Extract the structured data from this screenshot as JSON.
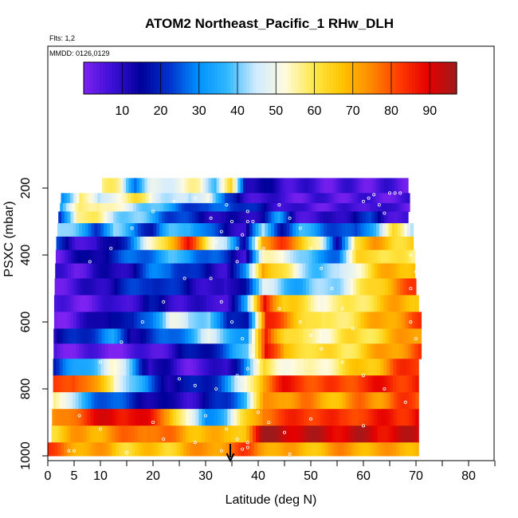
{
  "chart_data": {
    "type": "heatmap",
    "title": "ATOM2 Northeast_Pacific_1 RHw_DLH",
    "flights_label": "Flts: 1,2",
    "dates_label": "MMDD: 0126,0129",
    "xlabel": "Latitude (deg N)",
    "ylabel": "PSXC (mbar)",
    "xlim": [
      0,
      85
    ],
    "ylim": [
      1000,
      0
    ],
    "x_ticks_labeled": [
      0,
      5,
      10,
      20,
      30,
      40,
      50,
      60,
      70,
      80
    ],
    "x_ticks_minor": [
      15,
      25,
      35,
      45,
      55,
      65,
      75,
      85
    ],
    "y_ticks": [
      200,
      400,
      600,
      800,
      1000
    ],
    "marker_latitude": 34.7,
    "colorbar": {
      "min": 0,
      "max": 97,
      "tick_values": [
        10,
        20,
        30,
        40,
        50,
        60,
        70,
        80,
        90
      ],
      "colors": [
        "#7e22f2",
        "#3b0fd6",
        "#000099",
        "#0033cc",
        "#0090ff",
        "#30b8ff",
        "#cfeaff",
        "#fffbe0",
        "#ffe84a",
        "#ffc400",
        "#ff8a00",
        "#ff3b00",
        "#e60000",
        "#9e1a1a"
      ]
    },
    "bands": [
      {
        "p_top": 170,
        "p_bot": 215,
        "lat_start": 10.3,
        "lat_end": 68.5,
        "values": [
          55,
          55,
          30,
          45,
          50,
          50,
          55,
          40,
          60,
          15,
          12,
          10,
          8,
          5,
          5,
          5,
          5,
          5,
          5,
          5
        ]
      },
      {
        "p_top": 215,
        "p_bot": 245,
        "lat_start": 2.5,
        "lat_end": 68.8,
        "values": [
          30,
          60,
          40,
          55,
          60,
          50,
          45,
          40,
          55,
          20,
          10,
          8,
          5,
          5,
          5,
          5,
          5,
          5,
          5,
          5
        ]
      },
      {
        "p_top": 245,
        "p_bot": 270,
        "lat_start": 2.3,
        "lat_end": 68.8,
        "values": [
          35,
          55,
          60,
          50,
          45,
          40,
          30,
          25,
          20,
          30,
          20,
          15,
          10,
          5,
          5,
          5,
          5,
          10,
          5,
          5
        ]
      },
      {
        "p_top": 270,
        "p_bot": 305,
        "lat_start": 2.0,
        "lat_end": 68.5,
        "values": [
          20,
          60,
          55,
          45,
          40,
          35,
          25,
          20,
          15,
          10,
          10,
          15,
          30,
          10,
          5,
          10,
          15,
          20,
          10,
          5
        ]
      },
      {
        "p_top": 305,
        "p_bot": 345,
        "lat_start": 1.8,
        "lat_end": 69.5,
        "values": [
          45,
          35,
          25,
          40,
          30,
          20,
          35,
          40,
          25,
          15,
          10,
          40,
          20,
          35,
          30,
          25,
          20,
          40,
          60,
          45
        ]
      },
      {
        "p_top": 345,
        "p_bot": 385,
        "lat_start": 1.6,
        "lat_end": 69.5,
        "values": [
          20,
          10,
          5,
          15,
          30,
          50,
          70,
          85,
          60,
          45,
          10,
          75,
          80,
          70,
          55,
          10,
          65,
          70,
          65,
          65
        ]
      },
      {
        "p_top": 385,
        "p_bot": 425,
        "lat_start": 1.5,
        "lat_end": 69.8,
        "values": [
          5,
          10,
          15,
          20,
          25,
          30,
          35,
          35,
          25,
          20,
          10,
          50,
          55,
          40,
          30,
          30,
          60,
          65,
          60,
          55
        ]
      },
      {
        "p_top": 425,
        "p_bot": 470,
        "lat_start": 1.4,
        "lat_end": 69.8,
        "values": [
          5,
          5,
          10,
          10,
          15,
          25,
          30,
          20,
          15,
          10,
          25,
          75,
          60,
          45,
          40,
          40,
          55,
          65,
          70,
          70
        ]
      },
      {
        "p_top": 470,
        "p_bot": 520,
        "lat_start": 1.3,
        "lat_end": 70.0,
        "values": [
          5,
          5,
          10,
          15,
          20,
          25,
          20,
          15,
          10,
          5,
          20,
          45,
          40,
          35,
          40,
          45,
          55,
          65,
          75,
          80
        ]
      },
      {
        "p_top": 520,
        "p_bot": 570,
        "lat_start": 1.2,
        "lat_end": 70.5,
        "values": [
          3,
          3,
          5,
          5,
          10,
          15,
          10,
          10,
          5,
          10,
          30,
          90,
          65,
          60,
          55,
          55,
          60,
          65,
          70,
          70
        ]
      },
      {
        "p_top": 570,
        "p_bot": 620,
        "lat_start": 1.2,
        "lat_end": 71.0,
        "values": [
          3,
          5,
          10,
          20,
          15,
          30,
          50,
          40,
          45,
          15,
          20,
          85,
          75,
          65,
          55,
          60,
          65,
          70,
          75,
          80
        ]
      },
      {
        "p_top": 620,
        "p_bot": 665,
        "lat_start": 1.1,
        "lat_end": 71.0,
        "values": [
          10,
          20,
          25,
          30,
          15,
          20,
          25,
          35,
          45,
          40,
          30,
          85,
          65,
          55,
          55,
          60,
          60,
          65,
          70,
          75
        ]
      },
      {
        "p_top": 665,
        "p_bot": 710,
        "lat_start": 1.1,
        "lat_end": 71.0,
        "values": [
          5,
          3,
          3,
          3,
          3,
          5,
          10,
          15,
          20,
          25,
          40,
          90,
          65,
          65,
          60,
          60,
          65,
          70,
          75,
          80
        ]
      },
      {
        "p_top": 710,
        "p_bot": 760,
        "lat_start": 1.0,
        "lat_end": 70.5,
        "values": [
          20,
          30,
          40,
          50,
          40,
          10,
          10,
          5,
          5,
          10,
          30,
          60,
          55,
          50,
          55,
          60,
          65,
          70,
          80,
          85
        ]
      },
      {
        "p_top": 760,
        "p_bot": 810,
        "lat_start": 1.0,
        "lat_end": 70.5,
        "values": [
          80,
          85,
          70,
          60,
          40,
          25,
          15,
          15,
          20,
          30,
          50,
          75,
          85,
          85,
          80,
          80,
          85,
          85,
          85,
          85
        ]
      },
      {
        "p_top": 810,
        "p_bot": 860,
        "lat_start": 1.0,
        "lat_end": 70.5,
        "values": [
          60,
          40,
          30,
          25,
          20,
          15,
          10,
          10,
          15,
          20,
          40,
          70,
          75,
          75,
          70,
          70,
          75,
          75,
          80,
          80
        ]
      },
      {
        "p_top": 860,
        "p_bot": 910,
        "lat_start": 0.8,
        "lat_end": 70.5,
        "values": [
          70,
          80,
          85,
          90,
          90,
          85,
          75,
          50,
          30,
          40,
          60,
          80,
          80,
          85,
          85,
          80,
          85,
          85,
          85,
          90
        ]
      },
      {
        "p_top": 910,
        "p_bot": 960,
        "lat_start": 0.7,
        "lat_end": 70.5,
        "values": [
          65,
          70,
          70,
          75,
          75,
          80,
          75,
          70,
          70,
          65,
          70,
          95,
          95,
          92,
          92,
          92,
          92,
          90,
          92,
          90
        ]
      },
      {
        "p_top": 960,
        "p_bot": 1000,
        "lat_start": 0.0,
        "lat_end": 70.5,
        "values": [
          80,
          75,
          70,
          70,
          65,
          65,
          65,
          70,
          72,
          75,
          80,
          75,
          70,
          68,
          70,
          72,
          72,
          70,
          70,
          72
        ]
      }
    ],
    "sample_points": [
      [
        4,
        985
      ],
      [
        5,
        985
      ],
      [
        15,
        990
      ],
      [
        22,
        950
      ],
      [
        28,
        960
      ],
      [
        33,
        985
      ],
      [
        38,
        975
      ],
      [
        46,
        995
      ],
      [
        10,
        720
      ],
      [
        14,
        660
      ],
      [
        18,
        600
      ],
      [
        22,
        540
      ],
      [
        26,
        470
      ],
      [
        31,
        470
      ],
      [
        33,
        540
      ],
      [
        35,
        600
      ],
      [
        37,
        650
      ],
      [
        39,
        700
      ],
      [
        36,
        420
      ],
      [
        36,
        380
      ],
      [
        37,
        340
      ],
      [
        38,
        300
      ],
      [
        38,
        270
      ],
      [
        39,
        300
      ],
      [
        40,
        350
      ],
      [
        41,
        380
      ],
      [
        35,
        300
      ],
      [
        34,
        250
      ],
      [
        33,
        330
      ],
      [
        32,
        360
      ],
      [
        31,
        290
      ],
      [
        44,
        250
      ],
      [
        46,
        290
      ],
      [
        48,
        320
      ],
      [
        50,
        380
      ],
      [
        52,
        440
      ],
      [
        54,
        500
      ],
      [
        56,
        560
      ],
      [
        58,
        620
      ],
      [
        60,
        240
      ],
      [
        61,
        230
      ],
      [
        62,
        220
      ],
      [
        63,
        250
      ],
      [
        64,
        275
      ],
      [
        65,
        215
      ],
      [
        66,
        215
      ],
      [
        67,
        215
      ],
      [
        8,
        420
      ],
      [
        12,
        380
      ],
      [
        16,
        320
      ],
      [
        20,
        270
      ],
      [
        24,
        240
      ],
      [
        28,
        230
      ],
      [
        44,
        560
      ],
      [
        48,
        600
      ],
      [
        50,
        640
      ],
      [
        52,
        680
      ],
      [
        56,
        720
      ],
      [
        60,
        760
      ],
      [
        64,
        800
      ],
      [
        68,
        840
      ],
      [
        69,
        400
      ],
      [
        70,
        450
      ],
      [
        69,
        600
      ],
      [
        70,
        650
      ],
      [
        69,
        500
      ],
      [
        6,
        880
      ],
      [
        10,
        920
      ],
      [
        20,
        900
      ],
      [
        30,
        880
      ],
      [
        40,
        870
      ],
      [
        50,
        890
      ],
      [
        60,
        910
      ],
      [
        34,
        920
      ],
      [
        36,
        950
      ],
      [
        37,
        980
      ],
      [
        38,
        960
      ],
      [
        42,
        900
      ],
      [
        45,
        930
      ],
      [
        25,
        770
      ],
      [
        28,
        790
      ],
      [
        32,
        800
      ],
      [
        36,
        760
      ],
      [
        38,
        740
      ],
      [
        40,
        720
      ]
    ]
  }
}
